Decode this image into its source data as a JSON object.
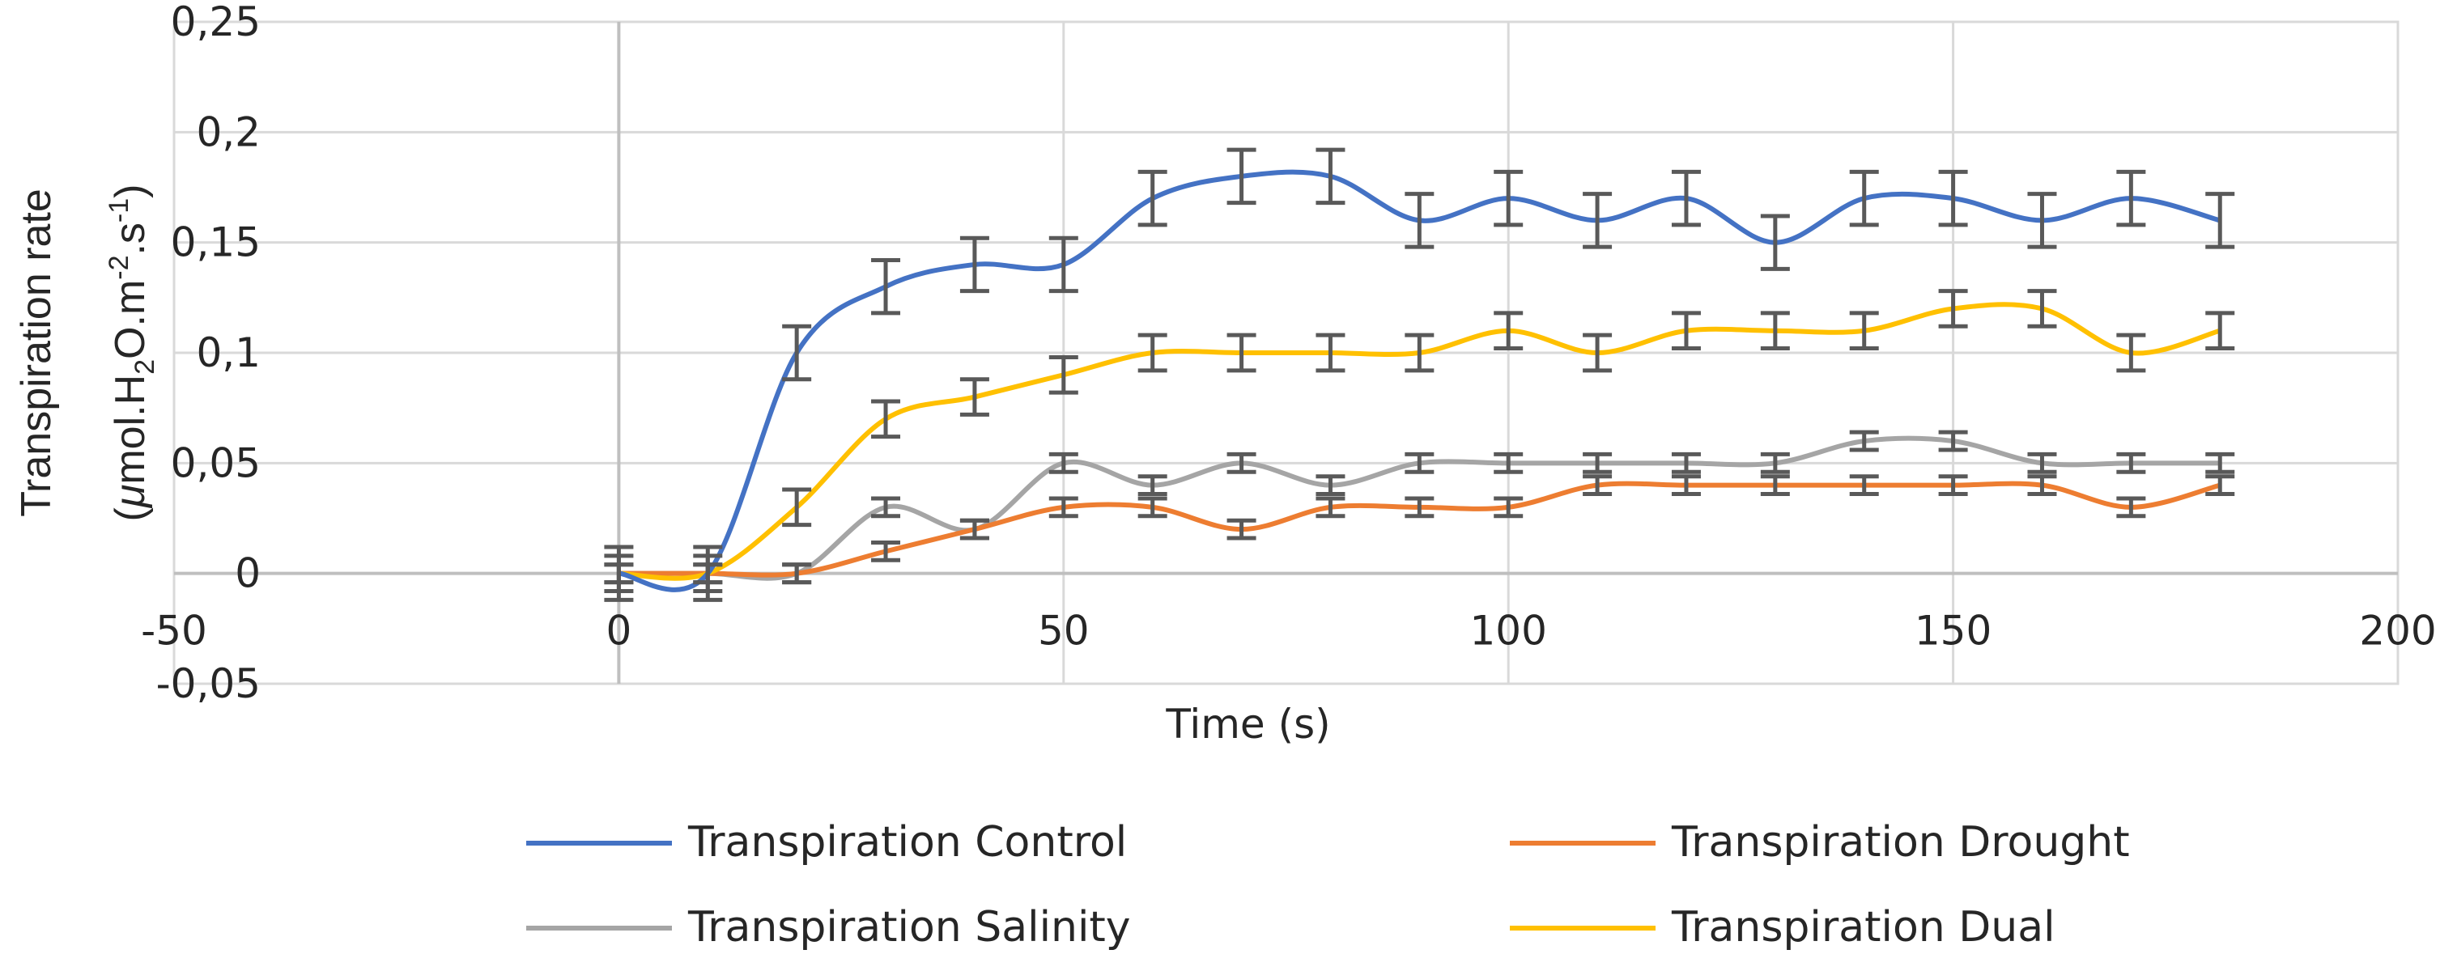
{
  "chart_data": {
    "type": "line",
    "title": "",
    "xlabel": "Time (s)",
    "ylabel_line1": "Transpiration rate",
    "ylabel_unit": {
      "open": "(",
      "mu": "μ",
      "mol": "mol.H",
      "sub2": "2",
      "om": "O.m",
      "supneg2": "-2",
      "s": ".s",
      "supneg1": "-1",
      "close": ")"
    },
    "xlim": [
      -50,
      200
    ],
    "ylim": [
      -0.05,
      0.25
    ],
    "x_ticks": [
      -50,
      0,
      50,
      100,
      150,
      200
    ],
    "x_tick_labels": [
      "-50",
      "0",
      "50",
      "100",
      "150",
      "200"
    ],
    "y_ticks": [
      -0.05,
      0,
      0.05,
      0.1,
      0.15,
      0.2,
      0.25
    ],
    "y_tick_labels": [
      "-0,05",
      "0",
      "0,05",
      "0,1",
      "0,15",
      "0,2",
      "0,25"
    ],
    "grid": true,
    "legend_position": "bottom",
    "x": [
      0,
      10,
      20,
      30,
      40,
      50,
      60,
      70,
      80,
      90,
      100,
      110,
      120,
      130,
      140,
      150,
      160,
      170,
      180
    ],
    "series": [
      {
        "name": "Transpiration Control",
        "color": "#4472c4",
        "values": [
          0,
          0,
          0.1,
          0.13,
          0.14,
          0.14,
          0.17,
          0.18,
          0.18,
          0.16,
          0.17,
          0.16,
          0.17,
          0.15,
          0.17,
          0.17,
          0.16,
          0.17,
          0.16
        ],
        "error": 0.012
      },
      {
        "name": "Transpiration Drought",
        "color": "#ed7d31",
        "values": [
          0,
          0,
          0,
          0.01,
          0.02,
          0.03,
          0.03,
          0.02,
          0.03,
          0.03,
          0.03,
          0.04,
          0.04,
          0.04,
          0.04,
          0.04,
          0.04,
          0.03,
          0.04
        ],
        "error": 0.004
      },
      {
        "name": "Transpiration Salinity",
        "color": "#a5a5a5",
        "values": [
          0,
          0,
          0,
          0.03,
          0.02,
          0.05,
          0.04,
          0.05,
          0.04,
          0.05,
          0.05,
          0.05,
          0.05,
          0.05,
          0.06,
          0.06,
          0.05,
          0.05,
          0.05
        ],
        "error": 0.004
      },
      {
        "name": "Transpiration Dual",
        "color": "#ffc000",
        "values": [
          0,
          0,
          0.03,
          0.07,
          0.08,
          0.09,
          0.1,
          0.1,
          0.1,
          0.1,
          0.11,
          0.1,
          0.11,
          0.11,
          0.11,
          0.12,
          0.12,
          0.1,
          0.11
        ],
        "error": 0.008
      }
    ]
  }
}
